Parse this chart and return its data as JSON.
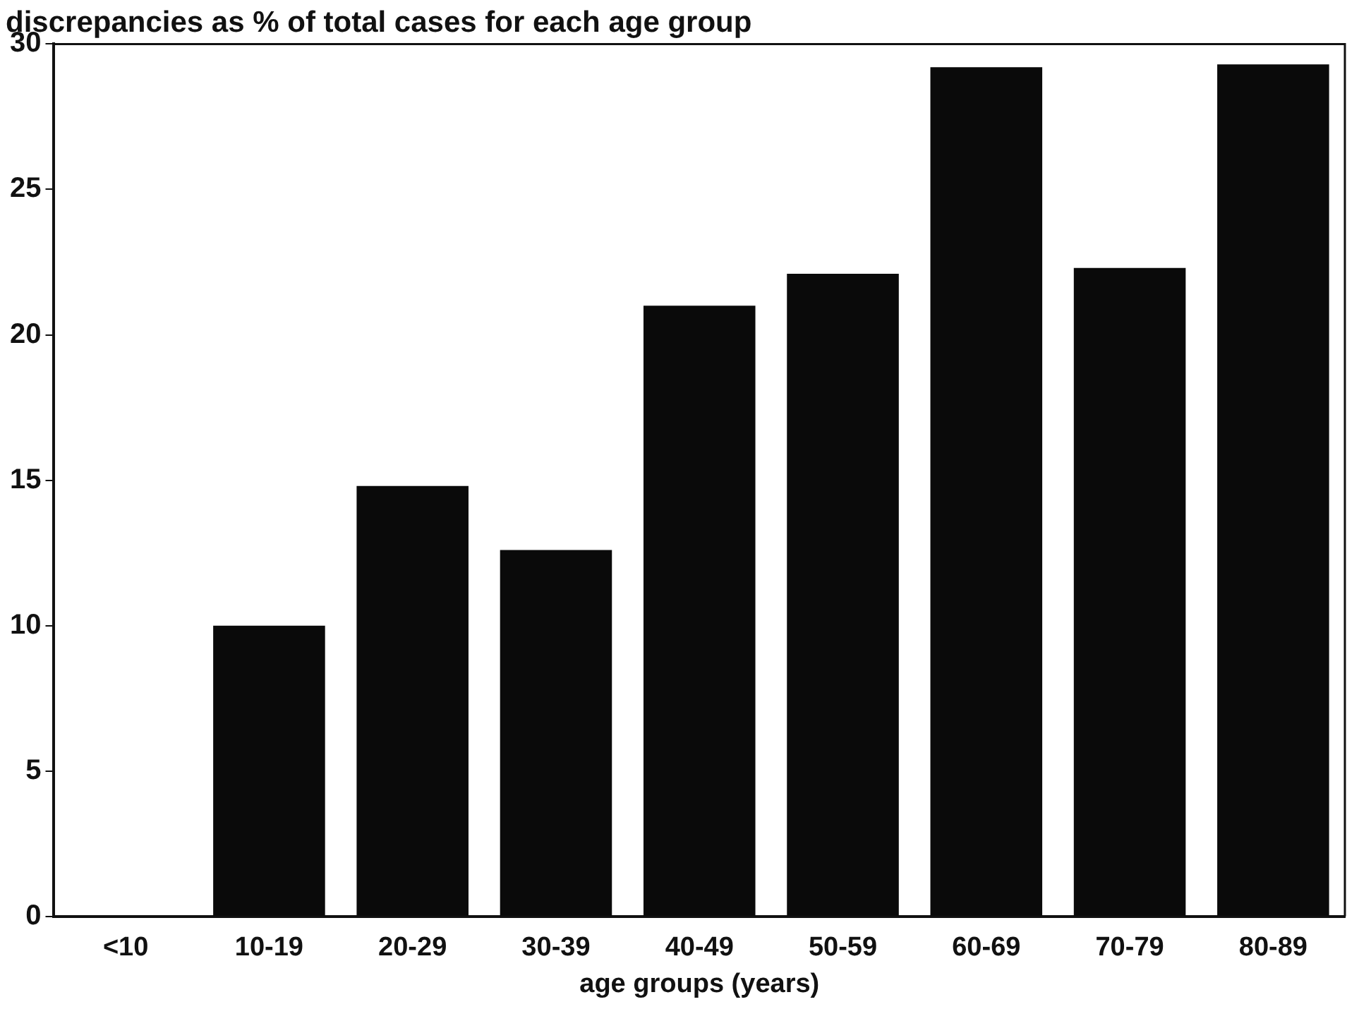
{
  "chart_data": {
    "type": "bar",
    "title": "discrepancies as % of total cases for each age group",
    "xlabel": "age groups (years)",
    "categories": [
      "<10",
      "10-19",
      "20-29",
      "30-39",
      "40-49",
      "50-59",
      "60-69",
      "70-79",
      "80-89"
    ],
    "values": [
      0,
      10.0,
      14.8,
      12.6,
      21.0,
      22.1,
      29.2,
      22.3,
      29.3
    ],
    "color": "#0a0a0a",
    "ylim": [
      0,
      30
    ],
    "yticks": [
      0,
      5,
      10,
      15,
      20,
      25,
      30
    ],
    "grid": false,
    "legend": false
  }
}
